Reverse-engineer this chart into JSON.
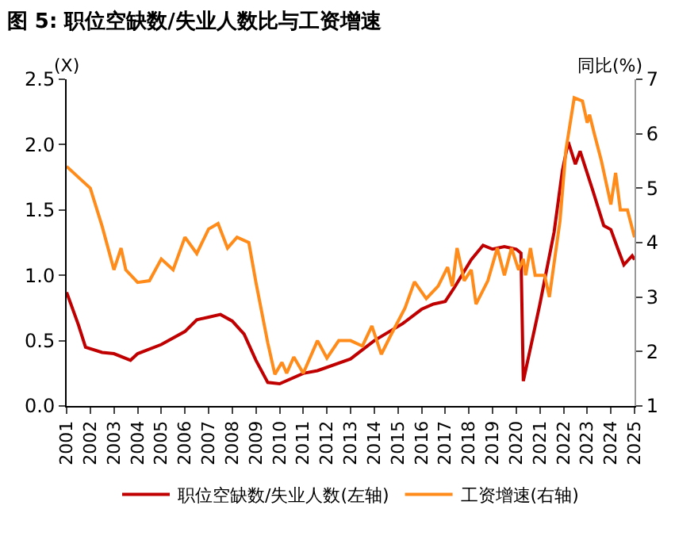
{
  "chart_data": {
    "type": "line",
    "title": "图 5: 职位空缺数/失业人数比与工资增速",
    "ylabel": "(X)",
    "y2label": "同比(%)",
    "xlim": [
      2001,
      2025
    ],
    "xticks": [
      2001,
      2002,
      2003,
      2004,
      2005,
      2006,
      2007,
      2008,
      2009,
      2010,
      2011,
      2012,
      2013,
      2014,
      2015,
      2016,
      2017,
      2018,
      2019,
      2020,
      2021,
      2022,
      2023,
      2024,
      2025
    ],
    "ylim": [
      0,
      2.5
    ],
    "yticks": [
      {
        "value": 0,
        "label": "0.0"
      },
      {
        "value": 0.5,
        "label": "0.5"
      },
      {
        "value": 1,
        "label": "1.0"
      },
      {
        "value": 1.5,
        "label": "1.5"
      },
      {
        "value": 2,
        "label": "2.0"
      },
      {
        "value": 2.5,
        "label": "2.5"
      }
    ],
    "y2lim": [
      1,
      7
    ],
    "y2ticks": [
      1,
      2,
      3,
      4,
      5,
      6,
      7
    ],
    "legend": "bottom",
    "line_style": "solid",
    "series": [
      {
        "name": "职位空缺数/失业人数(左轴)",
        "color": "#c00000",
        "x": [
          2001,
          2001.5,
          2001.8,
          2002.5,
          2003,
          2003.7,
          2004,
          2005,
          2006,
          2006.5,
          2007,
          2007.5,
          2008,
          2008.5,
          2009,
          2009.5,
          2010,
          2011,
          2011.6,
          2013,
          2014,
          2015.2,
          2016,
          2016.5,
          2017,
          2017.4,
          2018.1,
          2018.6,
          2019,
          2019.5,
          2020,
          2020.2,
          2020.3,
          2020.8,
          2021,
          2021.6,
          2021.95,
          2022.2,
          2022.5,
          2022.7,
          2023.25,
          2023.7,
          2024,
          2024.3,
          2024.55,
          2024.9,
          2025
        ],
        "values": [
          0.87,
          0.62,
          0.45,
          0.41,
          0.4,
          0.35,
          0.4,
          0.47,
          0.57,
          0.66,
          0.68,
          0.7,
          0.65,
          0.55,
          0.35,
          0.18,
          0.17,
          0.25,
          0.27,
          0.36,
          0.5,
          0.63,
          0.74,
          0.78,
          0.8,
          0.91,
          1.12,
          1.23,
          1.2,
          1.22,
          1.2,
          1.17,
          0.19,
          0.61,
          0.78,
          1.33,
          1.8,
          2.02,
          1.85,
          1.95,
          1.64,
          1.38,
          1.35,
          1.2,
          1.08,
          1.15,
          1.12
        ]
      },
      {
        "name": "工资增速(右轴)",
        "color": "#ff8c1a",
        "axis": "y2",
        "x": [
          2001,
          2001.5,
          2002,
          2002.5,
          2003,
          2003.3,
          2003.5,
          2004,
          2004.5,
          2005,
          2005.5,
          2006,
          2006.5,
          2007,
          2007.4,
          2007.8,
          2008.2,
          2008.7,
          2009,
          2009.5,
          2009.8,
          2010.1,
          2010.3,
          2010.6,
          2011,
          2011.6,
          2012,
          2012.5,
          2013,
          2013.5,
          2013.9,
          2014.3,
          2014.7,
          2015.3,
          2015.7,
          2016.2,
          2016.7,
          2017.1,
          2017.3,
          2017.5,
          2017.8,
          2018.1,
          2018.3,
          2018.8,
          2019.2,
          2019.5,
          2019.8,
          2020.1,
          2020.3,
          2020.4,
          2020.6,
          2020.8,
          2021.2,
          2021.4,
          2021.85,
          2022.1,
          2022.45,
          2022.8,
          2023,
          2023.1,
          2023.3,
          2023.6,
          2024,
          2024.2,
          2024.4,
          2024.7,
          2025
        ],
        "values": [
          5.4,
          5.2,
          5.0,
          4.3,
          3.5,
          3.9,
          3.5,
          3.27,
          3.3,
          3.7,
          3.5,
          4.1,
          3.8,
          4.25,
          4.35,
          3.9,
          4.1,
          4.0,
          3.27,
          2.16,
          1.58,
          1.8,
          1.6,
          1.9,
          1.6,
          2.2,
          1.88,
          2.2,
          2.2,
          2.1,
          2.47,
          1.95,
          2.3,
          2.8,
          3.28,
          2.97,
          3.2,
          3.55,
          3.2,
          3.9,
          3.3,
          3.5,
          2.87,
          3.3,
          3.9,
          3.4,
          3.9,
          3.5,
          3.7,
          3.4,
          3.9,
          3.4,
          3.4,
          3.0,
          4.4,
          5.7,
          6.66,
          6.6,
          6.2,
          6.35,
          6.0,
          5.5,
          4.7,
          5.28,
          4.6,
          4.6,
          4.1
        ]
      }
    ]
  }
}
